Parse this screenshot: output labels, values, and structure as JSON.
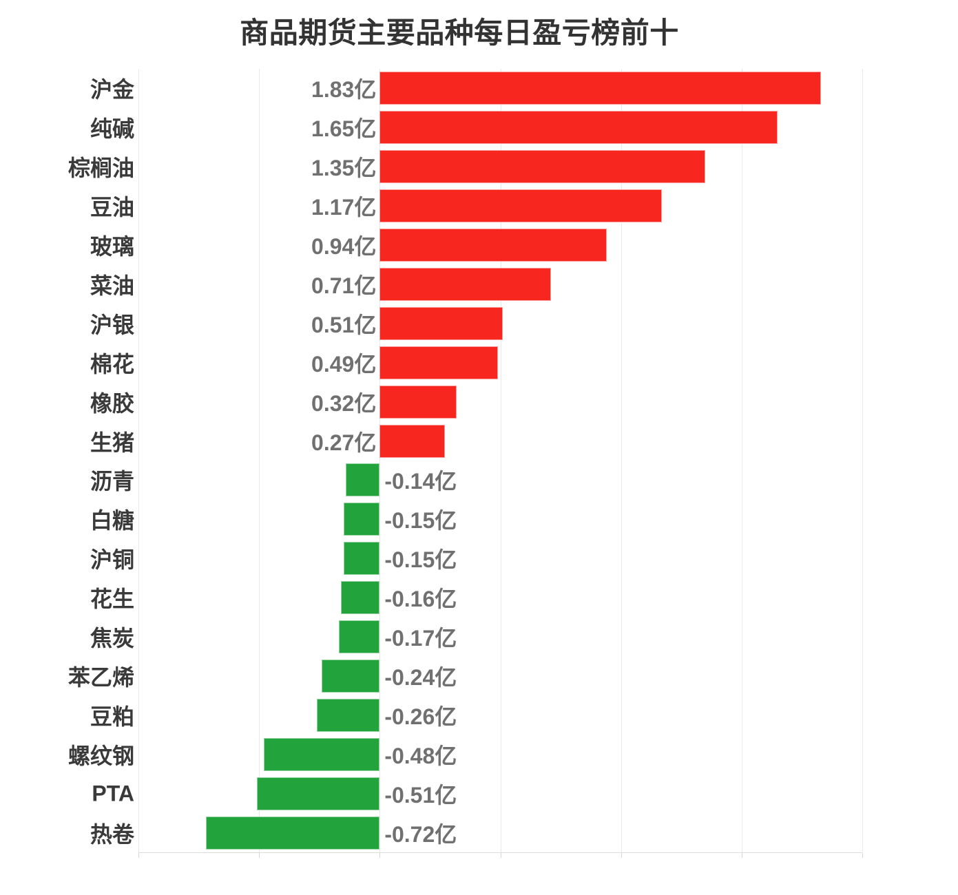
{
  "chart_data": {
    "type": "bar",
    "orientation": "horizontal",
    "title": "商品期货主要品种每日盈亏榜前十",
    "categories": [
      "沪金",
      "纯碱",
      "棕榈油",
      "豆油",
      "玻璃",
      "菜油",
      "沪银",
      "棉花",
      "橡胶",
      "生猪",
      "沥青",
      "白糖",
      "沪铜",
      "花生",
      "焦炭",
      "苯乙烯",
      "豆粕",
      "螺纹钢",
      "PTA",
      "热卷"
    ],
    "values": [
      1.83,
      1.65,
      1.35,
      1.17,
      0.94,
      0.71,
      0.51,
      0.49,
      0.32,
      0.27,
      -0.14,
      -0.15,
      -0.15,
      -0.16,
      -0.17,
      -0.24,
      -0.26,
      -0.48,
      -0.51,
      -0.72
    ],
    "value_labels": [
      "1.83亿",
      "1.65亿",
      "1.35亿",
      "1.17亿",
      "0.94亿",
      "0.71亿",
      "0.51亿",
      "0.49亿",
      "0.32亿",
      "0.27亿",
      "-0.14亿",
      "-0.15亿",
      "-0.15亿",
      "-0.16亿",
      "-0.17亿",
      "-0.24亿",
      "-0.26亿",
      "-0.48亿",
      "-0.51亿",
      "-0.72亿"
    ],
    "unit": "亿",
    "xlim": [
      -1.0,
      2.0
    ],
    "grid_step": 0.5,
    "grid": true,
    "axis_tick_labels_visible": false,
    "legend": "none",
    "positive_color": "#F7261F",
    "negative_color": "#23A33B",
    "title_color": "#333333",
    "category_label_color": "#3a3a3a",
    "value_label_color": "#707070"
  }
}
